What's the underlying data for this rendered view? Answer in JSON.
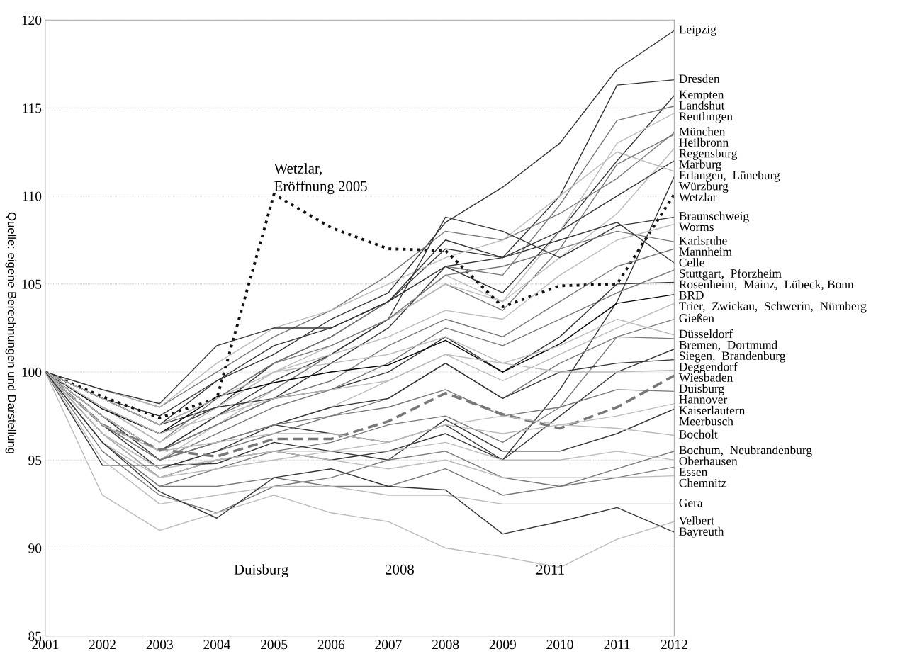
{
  "chart_data": {
    "type": "line",
    "x": [
      2001,
      2002,
      2003,
      2004,
      2005,
      2006,
      2007,
      2008,
      2009,
      2010,
      2011,
      2012
    ],
    "xlim": [
      2001,
      2012
    ],
    "xticks": [
      2001,
      2002,
      2003,
      2004,
      2005,
      2006,
      2007,
      2008,
      2009,
      2010,
      2011,
      2012
    ],
    "ylim": [
      85,
      120
    ],
    "yticks": [
      85,
      90,
      95,
      100,
      105,
      110,
      115,
      120
    ],
    "grid": "y",
    "legend": false,
    "line_style": "solid",
    "annotations": [
      "Quelle: eigene Berechnungen und Darstellung",
      {
        "text": "Wetzlar,\nEröffnung 2005",
        "x": 2005,
        "y": 110.1
      },
      "Duisburg",
      "2008",
      "2011"
    ],
    "series": [
      {
        "name": "Leipzig",
        "color": "#333333",
        "values": [
          100,
          98.5,
          97.0,
          99.5,
          101.0,
          103.0,
          104.5,
          108.5,
          110.5,
          113.0,
          117.2,
          119.4
        ]
      },
      {
        "name": "Dresden",
        "color": "#333333",
        "values": [
          100,
          98.0,
          96.5,
          98.0,
          100.5,
          102.0,
          104.0,
          107.0,
          106.5,
          110.0,
          116.3,
          116.6
        ]
      },
      {
        "name": "Kempten",
        "color": "#333333",
        "values": [
          100,
          97.5,
          95.5,
          97.0,
          98.5,
          100.5,
          102.5,
          106.0,
          104.5,
          108.0,
          112.0,
          115.7
        ]
      },
      {
        "name": "Landshut",
        "color": "#777777",
        "values": [
          100,
          98.0,
          96.0,
          98.5,
          100.5,
          102.0,
          104.0,
          106.0,
          105.5,
          109.5,
          114.3,
          115.1
        ]
      },
      {
        "name": "Reutlingen",
        "color": "#bbbbbb",
        "values": [
          100,
          97.0,
          95.0,
          97.0,
          99.0,
          101.0,
          103.0,
          105.5,
          104.0,
          108.0,
          113.0,
          114.7
        ]
      },
      {
        "name": "München",
        "color": "#777777",
        "values": [
          100,
          99.0,
          98.0,
          100.0,
          102.0,
          103.5,
          105.5,
          108.0,
          107.5,
          109.0,
          111.0,
          113.6
        ]
      },
      {
        "name": "Heilbronn",
        "color": "#777777",
        "values": [
          100,
          97.5,
          95.5,
          97.5,
          99.0,
          101.0,
          103.0,
          105.0,
          103.5,
          107.0,
          111.8,
          113.5
        ]
      },
      {
        "name": "Regensburg",
        "color": "#bbbbbb",
        "values": [
          100,
          98.0,
          96.0,
          98.0,
          100.0,
          101.5,
          103.0,
          105.0,
          104.0,
          106.5,
          109.0,
          112.7
        ]
      },
      {
        "name": "Marburg",
        "color": "#333333",
        "values": [
          100,
          98.5,
          97.5,
          99.5,
          101.5,
          102.5,
          104.0,
          106.0,
          106.5,
          108.0,
          110.0,
          112.0
        ]
      },
      {
        "name": "Erlangen,  Lüneburg",
        "color": "#bbbbbb",
        "values": [
          100,
          99.0,
          98.0,
          100.5,
          102.5,
          103.5,
          105.0,
          106.5,
          107.5,
          110.0,
          112.5,
          111.4
        ]
      },
      {
        "name": "Würzburg",
        "color": "#333333",
        "values": [
          100,
          97.5,
          95.0,
          96.0,
          97.0,
          96.5,
          96.0,
          97.0,
          95.0,
          99.0,
          104.0,
          111.1
        ]
      },
      {
        "name": "Wetzlar",
        "color": "#111111",
        "line_style": "dotted",
        "values": [
          100,
          98.6,
          97.4,
          98.5,
          110.1,
          108.2,
          107.0,
          106.9,
          103.7,
          104.9,
          105.0,
          110.1
        ]
      },
      {
        "name": "Braunschweig",
        "color": "#333333",
        "values": [
          100,
          97.5,
          95.5,
          97.5,
          99.5,
          101.0,
          103.0,
          108.8,
          108.0,
          106.5,
          108.3,
          108.8
        ]
      },
      {
        "name": "Worms",
        "color": "#bbbbbb",
        "values": [
          100,
          98.0,
          96.0,
          98.0,
          100.0,
          101.0,
          102.0,
          103.5,
          103.0,
          105.5,
          107.5,
          108.4
        ]
      },
      {
        "name": "Karlsruhe",
        "color": "#777777",
        "values": [
          100,
          98.5,
          97.0,
          98.5,
          100.5,
          101.5,
          103.0,
          105.5,
          106.0,
          107.0,
          108.0,
          107.4
        ]
      },
      {
        "name": "Mannheim",
        "color": "#777777",
        "values": [
          100,
          97.5,
          95.5,
          97.0,
          98.5,
          99.5,
          101.5,
          103.0,
          102.0,
          104.0,
          106.0,
          107.0
        ]
      },
      {
        "name": "Celle",
        "color": "#333333",
        "values": [
          100,
          99.0,
          98.2,
          101.5,
          102.5,
          102.5,
          104.0,
          107.5,
          106.5,
          107.5,
          108.5,
          106.2
        ]
      },
      {
        "name": "Stuttgart,  Pforzheim",
        "color": "#777777",
        "values": [
          100,
          97.0,
          95.0,
          96.5,
          98.0,
          99.0,
          100.5,
          102.5,
          101.5,
          103.0,
          104.5,
          105.8
        ]
      },
      {
        "name": "Rosenheim,  Mainz,  Lübeck, Bonn",
        "color": "#333333",
        "values": [
          100,
          98.5,
          97.0,
          98.0,
          98.5,
          99.0,
          100.0,
          102.0,
          100.0,
          102.0,
          105.0,
          105.1
        ]
      },
      {
        "name": "BRD",
        "color": "#000000",
        "values": [
          100,
          97.9,
          96.5,
          98.6,
          99.4,
          100.0,
          100.4,
          101.8,
          100.0,
          101.6,
          103.9,
          104.4
        ]
      },
      {
        "name": "Trier,  Zwickau,  Schwerin,  Nürnberg",
        "color": "#bbbbbb",
        "values": [
          100,
          97.5,
          95.5,
          96.0,
          97.0,
          98.0,
          99.5,
          101.0,
          99.5,
          101.0,
          102.5,
          103.9
        ]
      },
      {
        "name": "Gießen",
        "color": "#777777",
        "values": [
          100,
          96.5,
          94.5,
          95.5,
          96.5,
          97.5,
          98.5,
          100.5,
          98.5,
          100.5,
          102.0,
          103.0
        ]
      },
      {
        "name": "Düsseldorf",
        "color": "#bbbbbb",
        "values": [
          100,
          98.0,
          96.5,
          97.5,
          98.5,
          99.0,
          99.5,
          101.0,
          100.5,
          101.5,
          103.0,
          102.1
        ]
      },
      {
        "name": "Bremen,  Dortmund",
        "color": "#777777",
        "values": [
          100,
          96.0,
          93.5,
          94.5,
          95.5,
          96.0,
          97.0,
          97.5,
          96.0,
          98.0,
          102.0,
          101.9
        ]
      },
      {
        "name": "Siegen,  Brandenburg",
        "color": "#333333",
        "values": [
          100,
          96.5,
          94.0,
          95.0,
          95.5,
          95.0,
          95.5,
          96.5,
          95.0,
          97.5,
          100.0,
          101.3
        ]
      },
      {
        "name": "Deggendorf",
        "color": "#333333",
        "values": [
          100,
          97.0,
          94.5,
          95.5,
          97.0,
          98.0,
          98.5,
          100.5,
          98.5,
          100.0,
          100.5,
          100.7
        ]
      },
      {
        "name": "Wiesbaden",
        "color": "#bbbbbb",
        "values": [
          100,
          98.5,
          97.0,
          98.5,
          100.0,
          100.5,
          101.0,
          102.0,
          100.5,
          100.0,
          100.0,
          100.1
        ]
      },
      {
        "name": "Duisburg",
        "color": "#777777",
        "line_style": "dashed",
        "values": [
          100,
          97.0,
          95.6,
          95.2,
          96.2,
          96.2,
          97.2,
          98.8,
          97.6,
          96.8,
          98.0,
          99.8
        ]
      },
      {
        "name": "Hannover",
        "color": "#777777",
        "values": [
          100,
          97.0,
          95.0,
          96.0,
          97.0,
          97.5,
          98.0,
          99.0,
          97.5,
          98.0,
          99.0,
          98.9
        ]
      },
      {
        "name": "Kaiserlautern",
        "color": "#bbbbbb",
        "values": [
          100,
          96.5,
          94.0,
          95.0,
          95.5,
          95.5,
          96.0,
          97.0,
          96.5,
          97.0,
          97.5,
          98.2
        ]
      },
      {
        "name": "Meerbusch",
        "color": "#333333",
        "values": [
          100,
          94.7,
          94.7,
          94.8,
          96.0,
          95.5,
          95.0,
          97.3,
          95.5,
          95.5,
          96.5,
          97.9
        ]
      },
      {
        "name": "Bocholt",
        "color": "#bbbbbb",
        "values": [
          100,
          97.0,
          95.5,
          96.0,
          96.5,
          96.5,
          96.0,
          97.0,
          97.5,
          97.0,
          96.8,
          96.4
        ]
      },
      {
        "name": "Bochum,  Neubrandenburg",
        "color": "#777777",
        "values": [
          100,
          95.5,
          93.0,
          92.0,
          93.5,
          94.0,
          95.0,
          95.5,
          94.0,
          93.5,
          94.5,
          95.5
        ]
      },
      {
        "name": "Oberhausen",
        "color": "#bbbbbb",
        "values": [
          100,
          96.0,
          94.0,
          94.5,
          95.0,
          95.5,
          95.5,
          96.0,
          95.0,
          95.0,
          95.5,
          95.0
        ]
      },
      {
        "name": "Essen",
        "color": "#777777",
        "values": [
          100,
          96.0,
          93.5,
          93.5,
          94.0,
          93.5,
          93.5,
          94.5,
          93.0,
          93.5,
          94.0,
          94.6
        ]
      },
      {
        "name": "Chemnitz",
        "color": "#bbbbbb",
        "values": [
          100,
          96.5,
          94.5,
          95.0,
          95.5,
          95.0,
          94.5,
          95.0,
          94.0,
          94.0,
          94.0,
          94.1
        ]
      },
      {
        "name": "Gera",
        "color": "#bbbbbb",
        "values": [
          100,
          95.0,
          92.5,
          93.0,
          93.5,
          93.5,
          93.0,
          93.0,
          92.5,
          92.5,
          92.5,
          92.5
        ]
      },
      {
        "name": "Velbert",
        "color": "#bbbbbb",
        "values": [
          100,
          93.0,
          91.0,
          92.0,
          93.0,
          92.0,
          91.5,
          90.0,
          89.5,
          88.9,
          90.5,
          91.5
        ]
      },
      {
        "name": "Bayreuth",
        "color": "#333333",
        "values": [
          100,
          96.0,
          93.2,
          91.7,
          94.0,
          94.5,
          93.5,
          93.3,
          90.8,
          91.5,
          92.3,
          90.9
        ]
      }
    ]
  }
}
